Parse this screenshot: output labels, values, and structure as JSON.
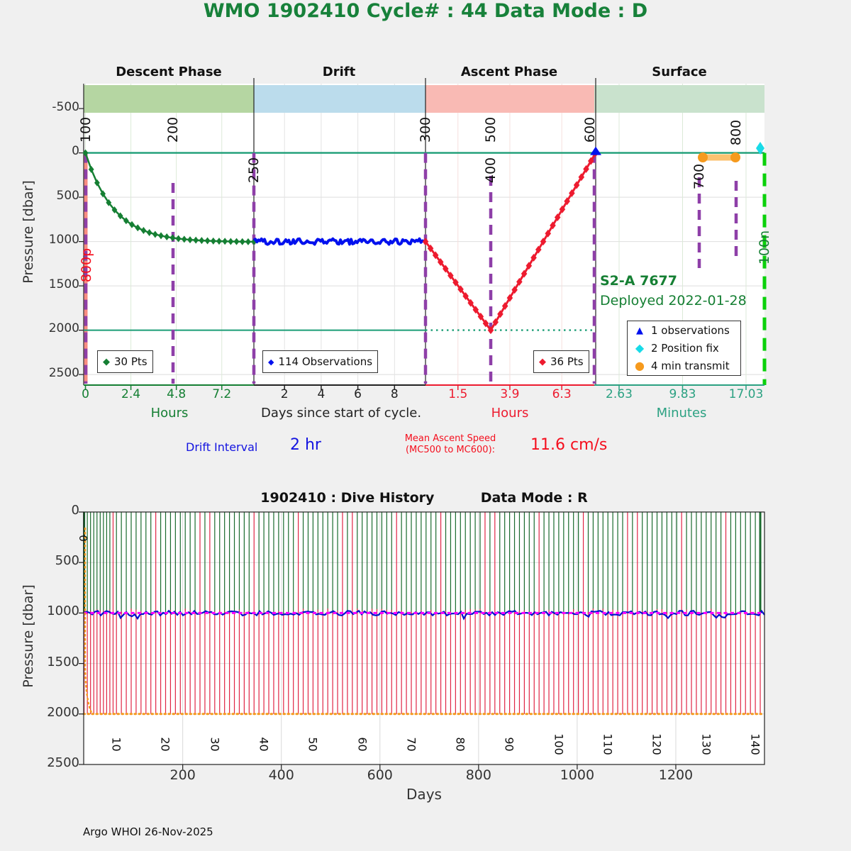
{
  "header": {
    "title": "WMO 1902410   Cycle# : 44   Data Mode : D",
    "color": "#17813a"
  },
  "top_chart": {
    "phases": [
      {
        "name": "Descent Phase",
        "duration": "8.9 hr",
        "band_bg": "#b5d6a2",
        "duration_color": "#157f33",
        "axis_color": "#157f33",
        "tick_labels": [
          "0",
          "2.4",
          "4.8",
          "7.2"
        ],
        "axis_name": "Hours",
        "grid_color": "#dcead8"
      },
      {
        "name": "Drift",
        "duration": "9.2 day",
        "band_bg": "#bbdcec",
        "duration_color": "#1388b8",
        "axis_color": "#222222",
        "tick_labels": [
          "2",
          "4",
          "6",
          "8"
        ],
        "axis_name": "Days since start of cycle.",
        "grid_color": "#e3e3e3"
      },
      {
        "name": "Ascent Phase",
        "duration": "7.8 hr",
        "band_bg": "#f9bab4",
        "duration_color": "#ed1b2f",
        "axis_color": "#ed1b2f",
        "tick_labels": [
          "1.5",
          "3.9",
          "6.3"
        ],
        "axis_name": "Hours",
        "grid_color": "#f6dfdd"
      },
      {
        "name": "Surface",
        "duration": "18 min",
        "band_bg": "#c9e2cd",
        "duration_color": "#2ba182",
        "axis_color": "#2ba182",
        "tick_labels": [
          "2.63",
          "9.83",
          "17.03"
        ],
        "axis_name": "Minutes",
        "grid_color": "#dcead8"
      }
    ],
    "ylabel": "Pressure [dbar]",
    "yticks": [
      "-500",
      "0",
      "500",
      "1000",
      "1500",
      "2000",
      "2500"
    ],
    "mc_labels": [
      {
        "text": "100",
        "color": "#111111"
      },
      {
        "text": "200",
        "color": "#111111"
      },
      {
        "text": "250",
        "color": "#111111"
      },
      {
        "text": "300",
        "color": "#111111"
      },
      {
        "text": "500",
        "color": "#111111"
      },
      {
        "text": "400",
        "color": "#111111"
      },
      {
        "text": "600",
        "color": "#111111"
      },
      {
        "text": "700",
        "color": "#111111"
      },
      {
        "text": "800",
        "color": "#111111"
      },
      {
        "text": "800p",
        "color": "#f50f1e"
      },
      {
        "text": "100n",
        "color": "#157f33"
      }
    ],
    "legend1": "30 Pts",
    "legend2": "114 Observations",
    "legend3": "36 Pts",
    "legend4": [
      {
        "label": "1 observations"
      },
      {
        "label": "2 Position fix"
      },
      {
        "label": "4 min transmit"
      }
    ],
    "float_label": "S2-A 7677",
    "deployed": "Deployed 2022-01-28",
    "drift_interval_label": "Drift Interval",
    "drift_interval_value": "2 hr",
    "ascent_speed_label1": "Mean Ascent Speed",
    "ascent_speed_label2": "(MC500 to MC600):",
    "ascent_speed_value": "11.6 cm/s"
  },
  "bottom_chart": {
    "title_left": "1902410 : Dive History",
    "title_right": "Data Mode : R",
    "ylabel": "Pressure [dbar]",
    "xlabel": "Days",
    "yticks": [
      "0",
      "500",
      "1000",
      "1500",
      "2000",
      "2500"
    ],
    "xticks": [
      "200",
      "400",
      "600",
      "800",
      "1000",
      "1200"
    ],
    "cycle0": "0",
    "cycle_ticks": [
      "10",
      "20",
      "30",
      "40",
      "50",
      "60",
      "70",
      "80",
      "90",
      "100",
      "110",
      "120",
      "130",
      "140"
    ]
  },
  "footer": "Argo WHOI 26-Nov-2025",
  "colors": {
    "descent_line": "#157f33",
    "drift_line": "#0010ee",
    "ascent_line": "#ed1b2f",
    "teal_line": "#1b9d76",
    "purple_dash": "#8e3fa8",
    "salmon": "#f78c81",
    "orange": "#f69a1d",
    "orange_light": "#fbc270",
    "cyan": "#18dbe8",
    "lime_dash": "#0ad10a",
    "history_green": "#1a6b2e",
    "history_red": "#e02545",
    "magenta": "#ff00ff",
    "history_blue": "#0011cc",
    "grid": "#dedede",
    "spine": "#222222"
  },
  "chart_data": [
    {
      "name": "cycle_profile",
      "type": "line",
      "title": "WMO 1902410   Cycle# : 44   Data Mode : D",
      "ylabel": "Pressure [dbar]",
      "ylim": [
        2620,
        -800
      ],
      "yticks": [
        -500,
        0,
        500,
        1000,
        1500,
        2000,
        2500
      ],
      "phases": [
        {
          "name": "Descent Phase",
          "duration_value": 8.9,
          "duration_unit": "hr",
          "xunit": "Hours",
          "xticks": [
            0,
            2.4,
            4.8,
            7.2
          ]
        },
        {
          "name": "Drift",
          "duration_value": 9.2,
          "duration_unit": "day",
          "xunit": "Days",
          "xticks": [
            2,
            4,
            6,
            8
          ]
        },
        {
          "name": "Ascent Phase",
          "duration_value": 7.8,
          "duration_unit": "hr",
          "xunit": "Hours",
          "xticks": [
            1.5,
            3.9,
            6.3
          ]
        },
        {
          "name": "Surface",
          "duration_value": 18,
          "duration_unit": "min",
          "xunit": "Minutes",
          "xticks": [
            2.63,
            9.83,
            17.03
          ]
        }
      ],
      "series": [
        {
          "name": "descent",
          "points": 30,
          "start_dbar": 0,
          "end_dbar": 1000,
          "duration_hr": 8.9,
          "shape": "exponential",
          "tau_hr": 1.5
        },
        {
          "name": "park",
          "points": 114,
          "pressure_dbar": 1000,
          "duration_day": 9.2
        },
        {
          "name": "ascent",
          "points": 36,
          "start_dbar": 1000,
          "profile_depth_dbar": 2000,
          "deep_at_hr": 3.0,
          "end_dbar": 0,
          "duration_hr": 7.8
        }
      ],
      "mission_codes": [
        100,
        200,
        250,
        300,
        400,
        500,
        600,
        700,
        800
      ],
      "reference_lines_dbar": [
        0,
        2000
      ],
      "surface_events": {
        "observations": 1,
        "position_fix": 2,
        "min_transmit": 4
      },
      "drift_interval_hr": 2,
      "mean_ascent_speed_cm_s": 11.6
    },
    {
      "name": "dive_history",
      "type": "line",
      "title": "1902410 : Dive History    Data Mode : R",
      "xlabel": "Days",
      "ylabel": "Pressure [dbar]",
      "xlim": [
        0,
        1380
      ],
      "ylim": [
        2500,
        0
      ],
      "xticks": [
        200,
        400,
        600,
        800,
        1000,
        1200
      ],
      "yticks": [
        0,
        500,
        1000,
        1500,
        2000,
        2500
      ],
      "n_cycles": 142,
      "park_pressure_dbar": 1000,
      "profile_pressure_dbar": 2000,
      "cycle_tick_labels": [
        10,
        20,
        30,
        40,
        50,
        60,
        70,
        80,
        90,
        100,
        110,
        120,
        130,
        140
      ]
    }
  ]
}
